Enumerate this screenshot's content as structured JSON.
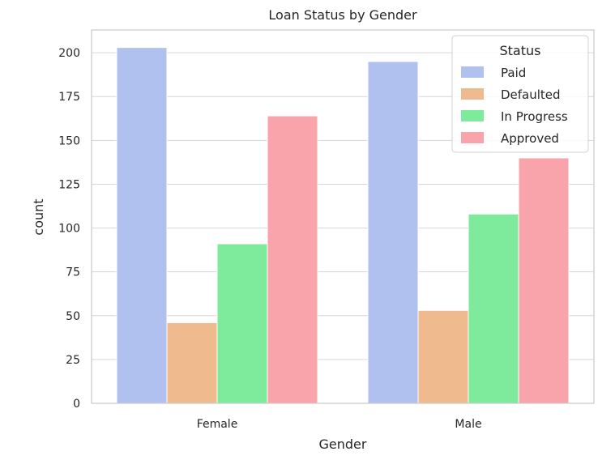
{
  "chart_data": {
    "type": "bar",
    "title": "Loan Status by Gender",
    "xlabel": "Gender",
    "ylabel": "count",
    "categories": [
      "Female",
      "Male"
    ],
    "series": [
      {
        "name": "Paid",
        "color": "#b0c1ef",
        "values": [
          203,
          195
        ]
      },
      {
        "name": "Defaulted",
        "color": "#efbb8e",
        "values": [
          46,
          53
        ]
      },
      {
        "name": "In Progress",
        "color": "#7dea9c",
        "values": [
          91,
          108
        ]
      },
      {
        "name": "Approved",
        "color": "#f9a4aa",
        "values": [
          164,
          140
        ]
      }
    ],
    "yticks": [
      0,
      25,
      50,
      75,
      100,
      125,
      150,
      175,
      200
    ],
    "ylim": [
      0,
      213
    ],
    "grid": true,
    "legend": {
      "title": "Status",
      "placement": "top-right"
    }
  }
}
